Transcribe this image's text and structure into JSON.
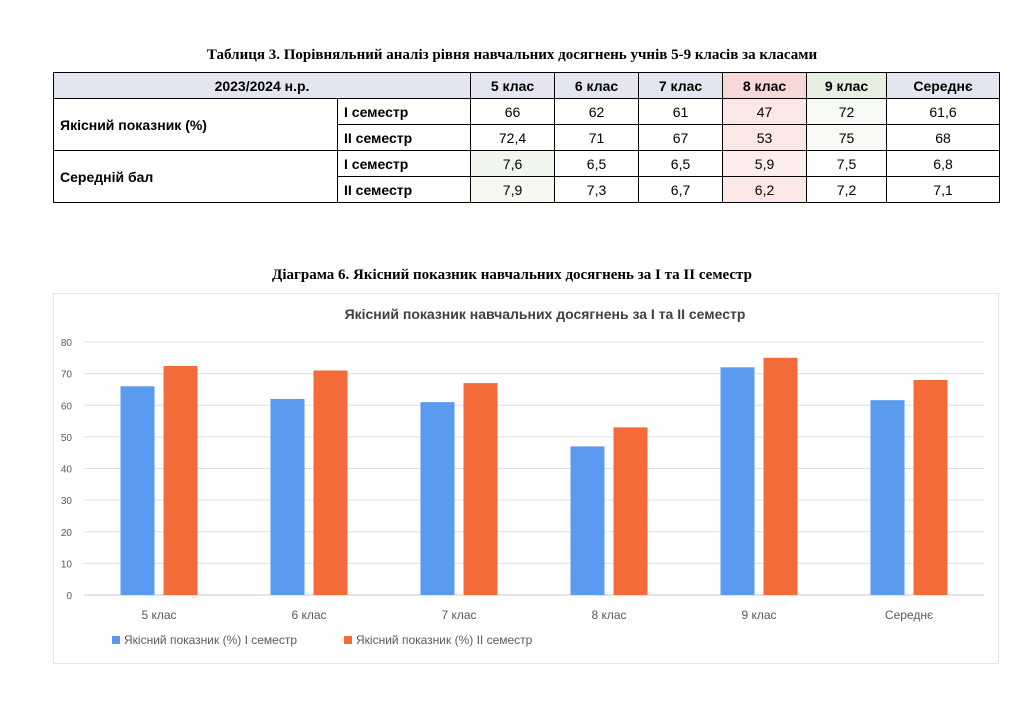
{
  "table": {
    "title": "Таблиця 3. Порівняльний аналіз  рівня навчальних досягнень учнів 5-9 класів  за класами",
    "year_header": "2023/2024 н.р.",
    "columns": [
      "5 клас",
      "6 клас",
      "7 клас",
      "8 клас",
      "9 клас",
      "Середнє"
    ],
    "rows": [
      {
        "label": "Якісний показник (%)",
        "semesters": [
          {
            "name": "І семестр",
            "values": [
              "66",
              "62",
              "61",
              "47",
              "72",
              "61,6"
            ]
          },
          {
            "name": "ІІ семестр",
            "values": [
              "72,4",
              "71",
              "67",
              "53",
              "75",
              "68"
            ]
          }
        ]
      },
      {
        "label": "Середній бал",
        "semesters": [
          {
            "name": "І семестр",
            "values": [
              "7,6",
              "6,5",
              "6,5",
              "5,9",
              "7,5",
              "6,8"
            ]
          },
          {
            "name": "ІІ семестр",
            "values": [
              "7,9",
              "7,3",
              "6,7",
              "6,2",
              "7,2",
              "7,1"
            ]
          }
        ]
      }
    ]
  },
  "diagram_caption": "Діаграма 6. Якісний показник навчальних досягнень за І та ІІ семестр",
  "chart_data": {
    "type": "bar",
    "title": "Якісний показник навчальних досягнень за І та ІІ семестр",
    "categories": [
      "5 клас",
      "6 клас",
      "7 клас",
      "8 клас",
      "9 клас",
      "Середнє"
    ],
    "series": [
      {
        "name": "Якісний показник (%) І семестр",
        "values": [
          66,
          62,
          61,
          47,
          72,
          61.6
        ],
        "color": "#5b9bef"
      },
      {
        "name": "Якісний показник (%) ІІ семестр",
        "values": [
          72.4,
          71,
          67,
          53,
          75,
          68
        ],
        "color": "#f26b38"
      }
    ],
    "ylim": [
      0,
      80
    ],
    "yticks": [
      0,
      10,
      20,
      30,
      40,
      50,
      60,
      70,
      80
    ],
    "grid": true,
    "legend": "bottom-left"
  }
}
